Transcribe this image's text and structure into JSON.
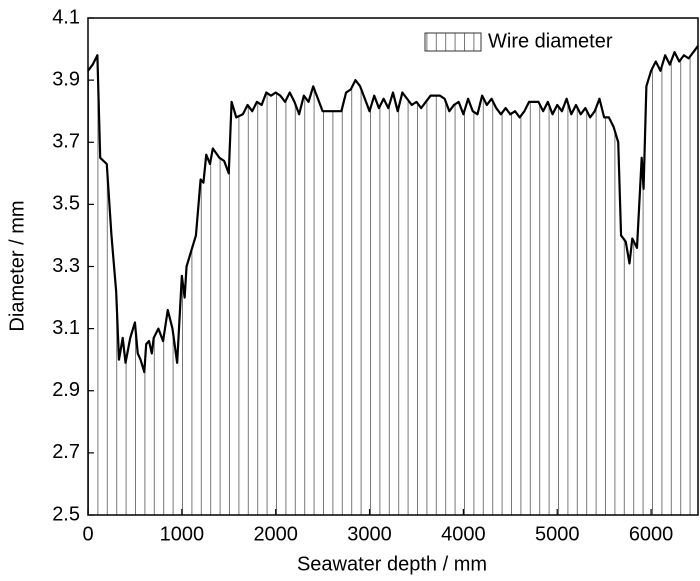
{
  "chart_data": {
    "type": "area",
    "xlabel": "Seawater depth / mm",
    "ylabel": "Diameter / mm",
    "x": [
      0,
      50,
      100,
      130,
      200,
      250,
      300,
      330,
      370,
      400,
      450,
      500,
      530,
      560,
      600,
      620,
      650,
      680,
      700,
      750,
      800,
      850,
      900,
      950,
      1000,
      1030,
      1050,
      1100,
      1150,
      1200,
      1230,
      1260,
      1300,
      1330,
      1400,
      1450,
      1500,
      1530,
      1580,
      1650,
      1700,
      1750,
      1800,
      1850,
      1900,
      1950,
      2000,
      2050,
      2100,
      2150,
      2200,
      2250,
      2300,
      2350,
      2400,
      2450,
      2500,
      2600,
      2700,
      2750,
      2800,
      2850,
      2900,
      2950,
      3000,
      3050,
      3100,
      3150,
      3200,
      3250,
      3300,
      3350,
      3400,
      3450,
      3500,
      3550,
      3600,
      3650,
      3700,
      3750,
      3800,
      3850,
      3900,
      3950,
      4000,
      4050,
      4100,
      4150,
      4200,
      4250,
      4300,
      4350,
      4400,
      4450,
      4500,
      4550,
      4600,
      4650,
      4700,
      4800,
      4850,
      4900,
      4950,
      5000,
      5050,
      5100,
      5150,
      5200,
      5250,
      5300,
      5350,
      5400,
      5450,
      5500,
      5550,
      5600,
      5650,
      5680,
      5730,
      5770,
      5800,
      5850,
      5900,
      5920,
      5950,
      6000,
      6050,
      6100,
      6150,
      6200,
      6250,
      6300,
      6350,
      6400,
      6450,
      6500
    ],
    "series": [
      {
        "name": "Wire diameter",
        "color": "#000000",
        "values": [
          3.93,
          3.95,
          3.98,
          3.65,
          3.63,
          3.4,
          3.22,
          3.0,
          3.07,
          2.99,
          3.07,
          3.12,
          3.02,
          3.0,
          2.96,
          3.05,
          3.06,
          3.02,
          3.07,
          3.1,
          3.06,
          3.16,
          3.1,
          2.99,
          3.27,
          3.2,
          3.3,
          3.35,
          3.4,
          3.58,
          3.57,
          3.66,
          3.63,
          3.68,
          3.65,
          3.64,
          3.6,
          3.83,
          3.78,
          3.79,
          3.82,
          3.8,
          3.83,
          3.82,
          3.86,
          3.85,
          3.86,
          3.85,
          3.83,
          3.86,
          3.83,
          3.79,
          3.85,
          3.83,
          3.88,
          3.84,
          3.8,
          3.8,
          3.8,
          3.86,
          3.87,
          3.9,
          3.88,
          3.84,
          3.8,
          3.85,
          3.81,
          3.84,
          3.81,
          3.86,
          3.8,
          3.86,
          3.84,
          3.82,
          3.83,
          3.81,
          3.83,
          3.85,
          3.85,
          3.85,
          3.84,
          3.8,
          3.82,
          3.83,
          3.79,
          3.84,
          3.8,
          3.79,
          3.85,
          3.82,
          3.84,
          3.81,
          3.79,
          3.81,
          3.79,
          3.8,
          3.78,
          3.8,
          3.83,
          3.83,
          3.8,
          3.83,
          3.79,
          3.82,
          3.8,
          3.84,
          3.79,
          3.82,
          3.79,
          3.81,
          3.78,
          3.8,
          3.84,
          3.78,
          3.78,
          3.75,
          3.7,
          3.4,
          3.38,
          3.31,
          3.39,
          3.36,
          3.65,
          3.55,
          3.88,
          3.93,
          3.96,
          3.93,
          3.98,
          3.95,
          3.99,
          3.96,
          3.98,
          3.97,
          3.99,
          4.01
        ]
      }
    ],
    "xlim": [
      0,
      6500
    ],
    "xticks": [
      0,
      1000,
      2000,
      3000,
      4000,
      5000,
      6000
    ],
    "ylim": [
      2.5,
      4.1
    ],
    "yticks": [
      2.5,
      2.7,
      2.9,
      3.1,
      3.3,
      3.5,
      3.7,
      3.9,
      4.1
    ],
    "legend": "upper right",
    "fill": "vertical-hatch"
  }
}
